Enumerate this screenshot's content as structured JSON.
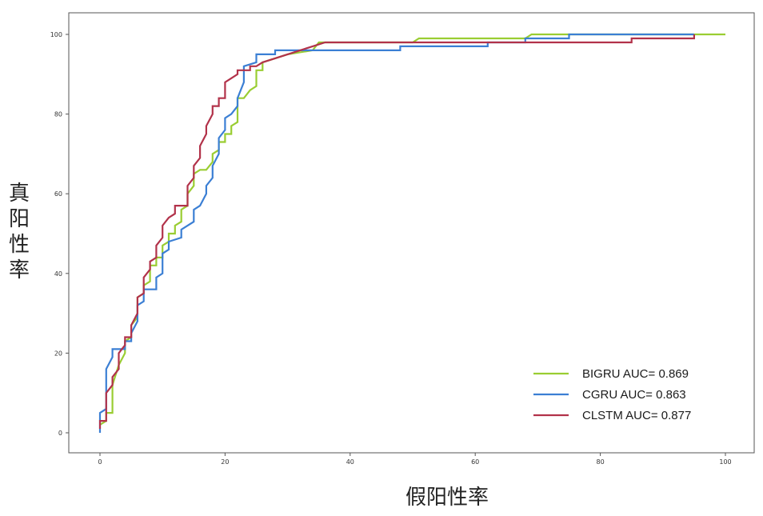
{
  "chart_data": {
    "type": "line",
    "title": "",
    "xlabel": "假阳性率",
    "ylabel": "真阳性率",
    "xlim": [
      0,
      100
    ],
    "ylim": [
      0,
      100
    ],
    "x_ticks": [
      0,
      20,
      40,
      60,
      80,
      100
    ],
    "y_ticks": [
      0,
      20,
      40,
      60,
      80,
      100
    ],
    "grid": false,
    "legend_position": "bottom-right",
    "series": [
      {
        "name": "BIGRU AUC= 0.869",
        "color": "#9acd32",
        "points": [
          [
            0,
            2
          ],
          [
            1,
            3
          ],
          [
            1,
            5
          ],
          [
            2,
            5
          ],
          [
            2,
            12
          ],
          [
            3,
            17
          ],
          [
            4,
            20
          ],
          [
            4,
            23
          ],
          [
            5,
            24
          ],
          [
            5,
            27
          ],
          [
            6,
            29
          ],
          [
            6,
            34
          ],
          [
            7,
            35
          ],
          [
            7,
            37
          ],
          [
            8,
            38
          ],
          [
            8,
            42
          ],
          [
            9,
            42
          ],
          [
            9,
            44
          ],
          [
            10,
            44
          ],
          [
            10,
            47
          ],
          [
            11,
            48
          ],
          [
            11,
            50
          ],
          [
            12,
            50
          ],
          [
            12,
            52
          ],
          [
            13,
            53
          ],
          [
            13,
            56
          ],
          [
            14,
            57
          ],
          [
            14,
            60
          ],
          [
            15,
            62
          ],
          [
            15,
            65
          ],
          [
            16,
            66
          ],
          [
            17,
            66
          ],
          [
            18,
            68
          ],
          [
            18,
            70
          ],
          [
            19,
            71
          ],
          [
            19,
            73
          ],
          [
            20,
            73
          ],
          [
            20,
            75
          ],
          [
            21,
            75
          ],
          [
            21,
            77
          ],
          [
            22,
            78
          ],
          [
            22,
            84
          ],
          [
            23,
            84
          ],
          [
            24,
            86
          ],
          [
            25,
            87
          ],
          [
            25,
            91
          ],
          [
            26,
            91
          ],
          [
            26,
            93
          ],
          [
            28,
            94
          ],
          [
            30,
            95
          ],
          [
            34,
            96
          ],
          [
            35,
            98
          ],
          [
            50,
            98
          ],
          [
            51,
            99
          ],
          [
            68,
            99
          ],
          [
            69,
            100
          ],
          [
            100,
            100
          ]
        ]
      },
      {
        "name": "CGRU AUC= 0.863",
        "color": "#3b7fd4",
        "points": [
          [
            0,
            0
          ],
          [
            0,
            5
          ],
          [
            1,
            6
          ],
          [
            1,
            12
          ],
          [
            1,
            16
          ],
          [
            2,
            19
          ],
          [
            2,
            21
          ],
          [
            3,
            21
          ],
          [
            4,
            21
          ],
          [
            4,
            23
          ],
          [
            5,
            23
          ],
          [
            5,
            25
          ],
          [
            6,
            28
          ],
          [
            6,
            32
          ],
          [
            7,
            33
          ],
          [
            7,
            36
          ],
          [
            9,
            36
          ],
          [
            9,
            39
          ],
          [
            10,
            40
          ],
          [
            10,
            45
          ],
          [
            11,
            46
          ],
          [
            11,
            48
          ],
          [
            13,
            49
          ],
          [
            13,
            51
          ],
          [
            15,
            53
          ],
          [
            15,
            56
          ],
          [
            16,
            57
          ],
          [
            17,
            60
          ],
          [
            17,
            62
          ],
          [
            18,
            64
          ],
          [
            18,
            67
          ],
          [
            19,
            70
          ],
          [
            19,
            74
          ],
          [
            20,
            76
          ],
          [
            20,
            79
          ],
          [
            21,
            80
          ],
          [
            22,
            82
          ],
          [
            22,
            84
          ],
          [
            23,
            88
          ],
          [
            23,
            92
          ],
          [
            25,
            93
          ],
          [
            25,
            95
          ],
          [
            28,
            95
          ],
          [
            28,
            96
          ],
          [
            38,
            96
          ],
          [
            48,
            96
          ],
          [
            48,
            97
          ],
          [
            62,
            97
          ],
          [
            62,
            98
          ],
          [
            68,
            98
          ],
          [
            68,
            99
          ],
          [
            75,
            99
          ],
          [
            75,
            100
          ],
          [
            95,
            100
          ]
        ]
      },
      {
        "name": "CLSTM AUC= 0.877",
        "color": "#b2324a",
        "points": [
          [
            0,
            1
          ],
          [
            0,
            3
          ],
          [
            1,
            3
          ],
          [
            1,
            10
          ],
          [
            2,
            12
          ],
          [
            2,
            14
          ],
          [
            3,
            16
          ],
          [
            3,
            20
          ],
          [
            4,
            22
          ],
          [
            4,
            24
          ],
          [
            5,
            24
          ],
          [
            5,
            27
          ],
          [
            6,
            30
          ],
          [
            6,
            34
          ],
          [
            7,
            35
          ],
          [
            7,
            39
          ],
          [
            8,
            41
          ],
          [
            8,
            43
          ],
          [
            9,
            44
          ],
          [
            9,
            47
          ],
          [
            10,
            49
          ],
          [
            10,
            52
          ],
          [
            11,
            54
          ],
          [
            12,
            55
          ],
          [
            12,
            57
          ],
          [
            14,
            57
          ],
          [
            14,
            62
          ],
          [
            15,
            64
          ],
          [
            15,
            67
          ],
          [
            16,
            69
          ],
          [
            16,
            72
          ],
          [
            17,
            75
          ],
          [
            17,
            77
          ],
          [
            18,
            80
          ],
          [
            18,
            82
          ],
          [
            19,
            82
          ],
          [
            19,
            84
          ],
          [
            20,
            84
          ],
          [
            20,
            88
          ],
          [
            21,
            89
          ],
          [
            22,
            90
          ],
          [
            22,
            91
          ],
          [
            24,
            91
          ],
          [
            24,
            92
          ],
          [
            25,
            92
          ],
          [
            26,
            93
          ],
          [
            28,
            94
          ],
          [
            30,
            95
          ],
          [
            32,
            96
          ],
          [
            34,
            97
          ],
          [
            36,
            98
          ],
          [
            60,
            98
          ],
          [
            85,
            98
          ],
          [
            85,
            99
          ],
          [
            95,
            99
          ],
          [
            95,
            100
          ]
        ]
      }
    ]
  }
}
